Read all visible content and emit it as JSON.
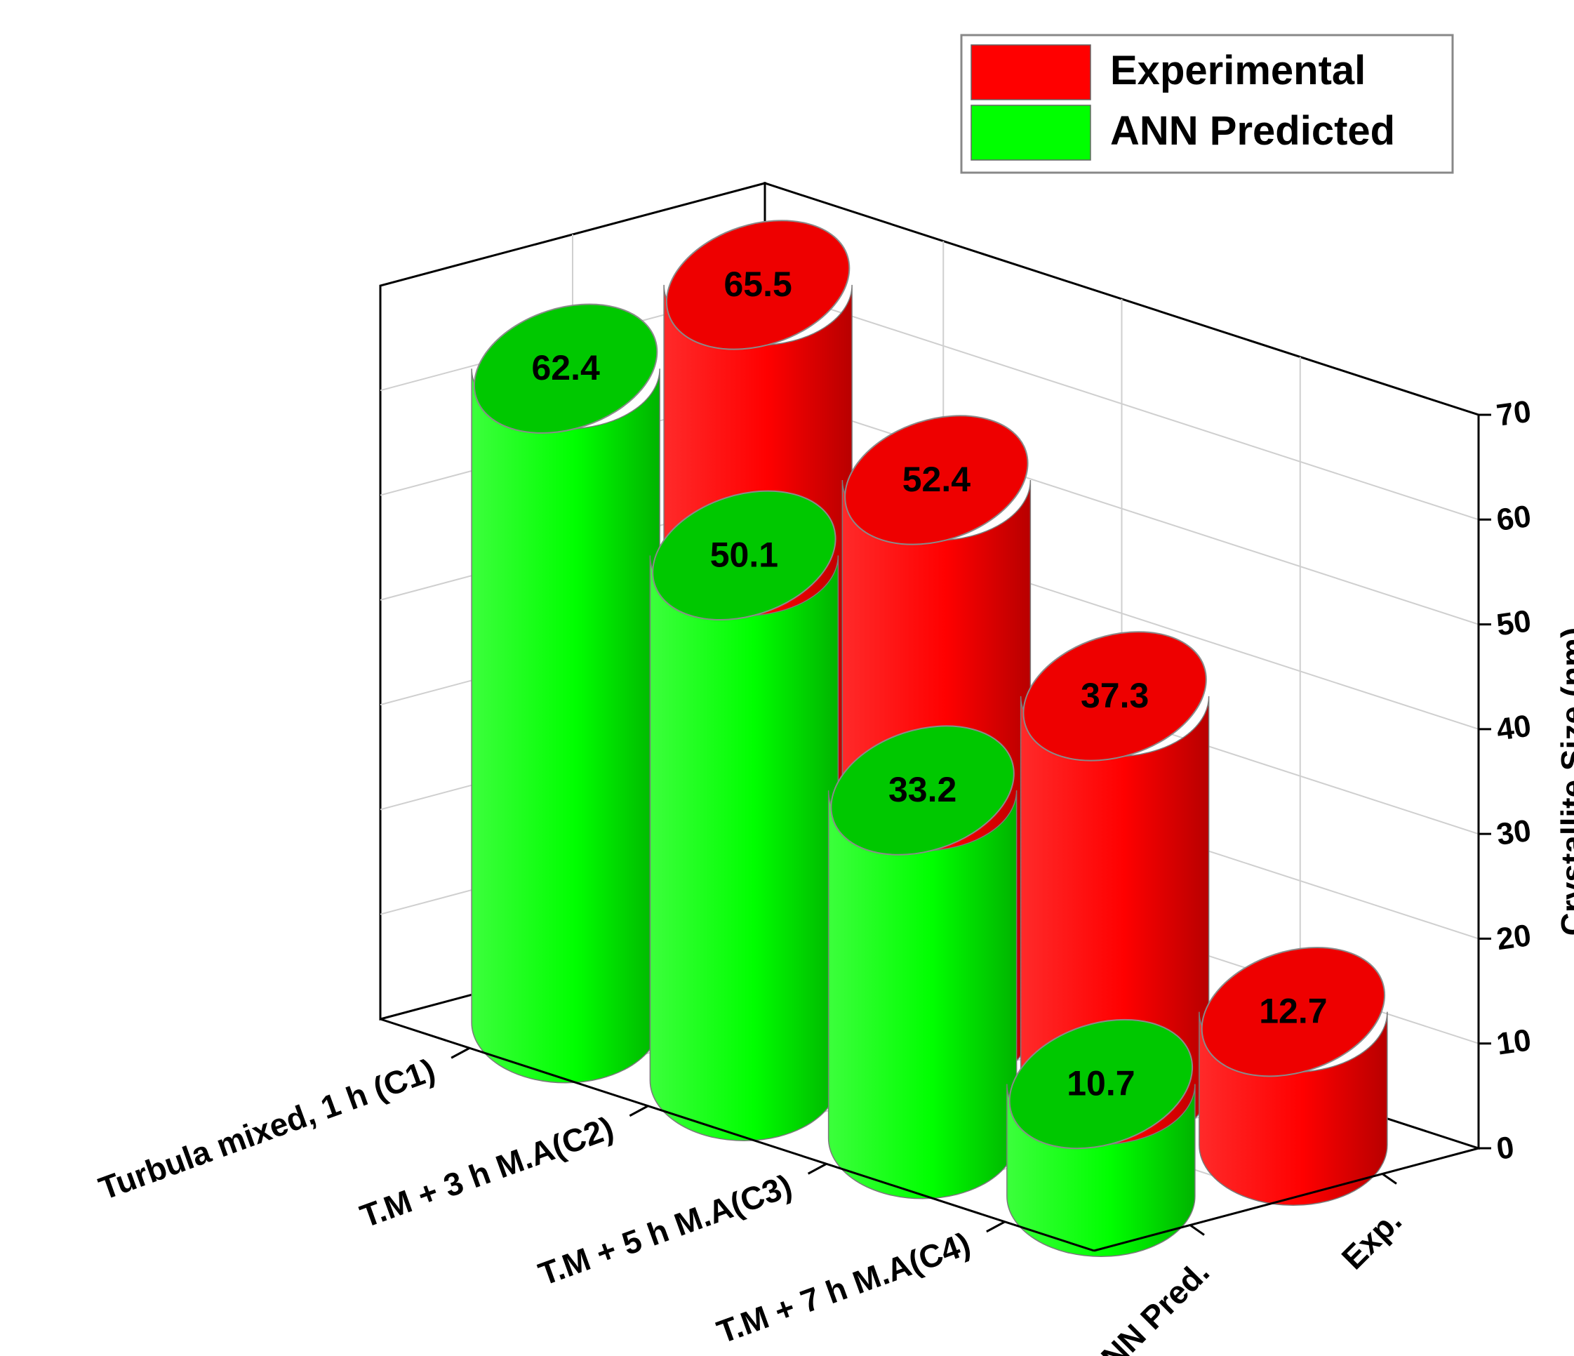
{
  "chart_data": {
    "type": "bar",
    "style": "3d-cylinder",
    "categories": [
      "Turbula mixed, 1 h (C1)",
      "T.M + 3 h M.A(C2)",
      "T.M + 5 h M.A(C3)",
      "T.M + 7 h M.A(C4)"
    ],
    "depth_categories": [
      "ANN Pred.",
      "Exp."
    ],
    "series": [
      {
        "name": "Experimental",
        "depth_label": "Exp.",
        "color": "#ff0000",
        "values": [
          65.5,
          52.4,
          37.3,
          12.7
        ]
      },
      {
        "name": "ANN Predicted",
        "depth_label": "ANN Pred.",
        "color": "#00ff00",
        "values": [
          62.4,
          50.1,
          33.2,
          10.7
        ]
      }
    ],
    "zlabel": "Crystallite Size (nm)",
    "zlim": [
      0,
      70
    ],
    "zticks": [
      0,
      10,
      20,
      30,
      40,
      50,
      60,
      70
    ],
    "grid": true,
    "legend": {
      "position": "top-right"
    }
  }
}
